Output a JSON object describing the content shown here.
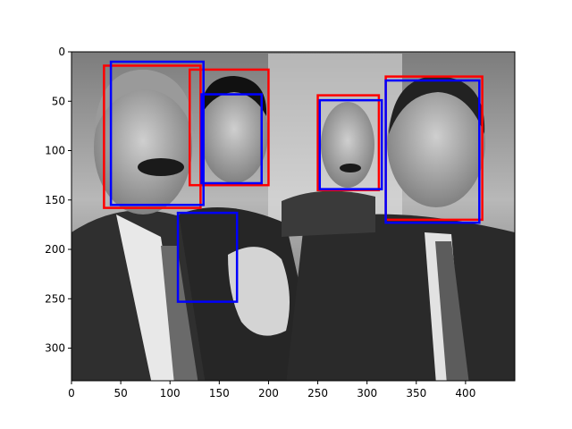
{
  "figure": {
    "image_description_hidden": "",
    "x_ticks": [
      0,
      50,
      100,
      150,
      200,
      250,
      300,
      350,
      400
    ],
    "y_ticks": [
      0,
      50,
      100,
      150,
      200,
      250,
      300
    ],
    "x_range": [
      0,
      450
    ],
    "y_range": [
      0,
      333
    ],
    "colors": {
      "ground_truth_box": "#ff0000",
      "predicted_box": "#0000ff",
      "axis": "#000000",
      "photo_bg": "#8a8a8a"
    }
  },
  "chart_data": {
    "type": "image-with-bounding-boxes",
    "x_axis_tick_labels": [
      "0",
      "50",
      "100",
      "150",
      "200",
      "250",
      "300",
      "350",
      "400"
    ],
    "y_axis_tick_labels": [
      "0",
      "50",
      "100",
      "150",
      "200",
      "250",
      "300"
    ],
    "xlim": [
      0,
      450
    ],
    "ylim": [
      333,
      0
    ],
    "red_boxes": [
      {
        "x0": 33,
        "y0": 14,
        "x1": 131,
        "y1": 158
      },
      {
        "x0": 120,
        "y0": 18,
        "x1": 200,
        "y1": 135
      },
      {
        "x0": 250,
        "y0": 44,
        "x1": 312,
        "y1": 140
      },
      {
        "x0": 319,
        "y0": 25,
        "x1": 417,
        "y1": 170
      }
    ],
    "blue_boxes": [
      {
        "x0": 40,
        "y0": 10,
        "x1": 134,
        "y1": 155
      },
      {
        "x0": 132,
        "y0": 43,
        "x1": 193,
        "y1": 133
      },
      {
        "x0": 252,
        "y0": 49,
        "x1": 315,
        "y1": 139
      },
      {
        "x0": 319,
        "y0": 29,
        "x1": 414,
        "y1": 173
      },
      {
        "x0": 108,
        "y0": 163,
        "x1": 168,
        "y1": 253
      }
    ]
  }
}
